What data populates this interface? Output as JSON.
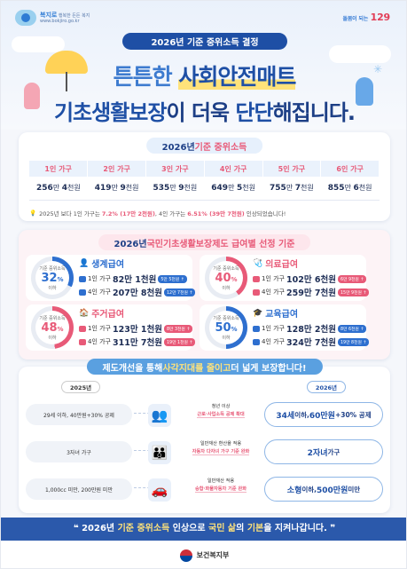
{
  "header": {
    "logo_left_name": "복지로",
    "logo_left_sub": "행복한 든든 복지",
    "logo_left_url": "www.bokjiro.go.kr",
    "logo_right": "돌봄이 되는",
    "logo_right_num": "129"
  },
  "hero": {
    "pill": "2026년 기준 중위소득 결정",
    "line1_pre": "튼튼한 ",
    "line1_hl": "사회안전매트",
    "line2_a": "기초생활보장",
    "line2_b": "이 더욱 ",
    "line2_c": "단단",
    "line2_d": "해집니다."
  },
  "income": {
    "pill_a": "2026년 ",
    "pill_b": "기준 중위소득",
    "headers": [
      "1인 가구",
      "2인 가구",
      "3인 가구",
      "4인 가구",
      "5인 가구",
      "6인 가구"
    ],
    "values": [
      {
        "big": "256",
        "unit1": "만 ",
        "big2": "4",
        "unit2": "천원"
      },
      {
        "big": "419",
        "unit1": "만 ",
        "big2": "9",
        "unit2": "천원"
      },
      {
        "big": "535",
        "unit1": "만 ",
        "big2": "9",
        "unit2": "천원"
      },
      {
        "big": "649",
        "unit1": "만 ",
        "big2": "5",
        "unit2": "천원"
      },
      {
        "big": "755",
        "unit1": "만 ",
        "big2": "7",
        "unit2": "천원"
      },
      {
        "big": "855",
        "unit1": "만 ",
        "big2": "6",
        "unit2": "천원"
      }
    ],
    "note_a": "2025년 보다 1인 가구는 ",
    "note_b": "7.2% (17만 2천원)",
    "note_c": ", 4인 가구는 ",
    "note_d": "6.51% (39만 7천원)",
    "note_e": " 인상되었습니다!"
  },
  "benefits": {
    "pill_a": "2026년 ",
    "pill_b": "국민기초생활보장제도 급여별 선정 기준",
    "items": [
      {
        "label": "기준 중위소득",
        "pct": "32",
        "below": "이하",
        "title": "생계급여",
        "color": "#2e6fcf",
        "l1_pre": "1인 가구",
        "l1_amt": "82만 1천원",
        "l1_tag": "5만 5천원 ↑",
        "l2_pre": "4인 가구",
        "l2_amt": "207만 8천원",
        "l2_tag": "12만 7천원 ↑"
      },
      {
        "label": "기준 중위소득",
        "pct": "40",
        "below": "이하",
        "title": "의료급여",
        "color": "#e85a78",
        "l1_pre": "1인 가구",
        "l1_amt": "102만 6천원",
        "l1_tag": "6만 9천원 ↑",
        "l2_pre": "4인 가구",
        "l2_amt": "259만 7천원",
        "l2_tag": "15만 9천원 ↑"
      },
      {
        "label": "기준 중위소득",
        "pct": "48",
        "below": "이하",
        "title": "주거급여",
        "color": "#e85a78",
        "l1_pre": "1인 가구",
        "l1_amt": "123만 1천원",
        "l1_tag": "8만 3천원 ↑",
        "l2_pre": "4인 가구",
        "l2_amt": "311만 7천원",
        "l2_tag": "19만 1천원 ↑"
      },
      {
        "label": "기준 중위소득",
        "pct": "50",
        "below": "이하",
        "title": "교육급여",
        "color": "#2e6fcf",
        "l1_pre": "1인 가구",
        "l1_amt": "128만 2천원",
        "l1_tag": "8만 6천원 ↑",
        "l2_pre": "4인 가구",
        "l2_amt": "324만 7천원",
        "l2_tag": "19만 8천원 ↑"
      }
    ]
  },
  "reform": {
    "pill_a": "제도개선을 통해 ",
    "pill_b": "사각지대를 줄이고",
    "pill_c": " 더 넓게 보장합니다!",
    "year_old": "2025년",
    "year_new": "2026년",
    "rows": [
      {
        "old": "29세 이하, 40만원+30% 공제",
        "icon": "👥",
        "t1": "청년 이상",
        "t2": "근로·사업소득 공제 확대",
        "new_a": "34세",
        "new_b": " 이하, ",
        "new_c": "60만원",
        "new_d": "+30% 공제"
      },
      {
        "old": "3자녀 가구",
        "icon": "👪",
        "t1": "일반재산 환산율 적용",
        "t2": "자동차 다자녀 가구 기준 완화",
        "new_a": "2자녀",
        "new_b": " 가구",
        "new_c": "",
        "new_d": ""
      },
      {
        "old": "1,000cc 미만, 200만원 미만",
        "icon": "🚗",
        "t1": "일반재산 적용",
        "t2": "승합·화물자동차 기준 완화",
        "new_a": "소형",
        "new_b": " 이하, ",
        "new_c": "500만원",
        "new_d": " 미만"
      }
    ]
  },
  "footer": {
    "slogan_a": "❝ 2026년 ",
    "slogan_b": "기준 중위소득",
    "slogan_c": " 인상으로 ",
    "slogan_d": "국민 삶",
    "slogan_e": "의 ",
    "slogan_f": "기본",
    "slogan_g": "을 지켜나갑니다. ❞",
    "ministry": "보건복지부"
  }
}
